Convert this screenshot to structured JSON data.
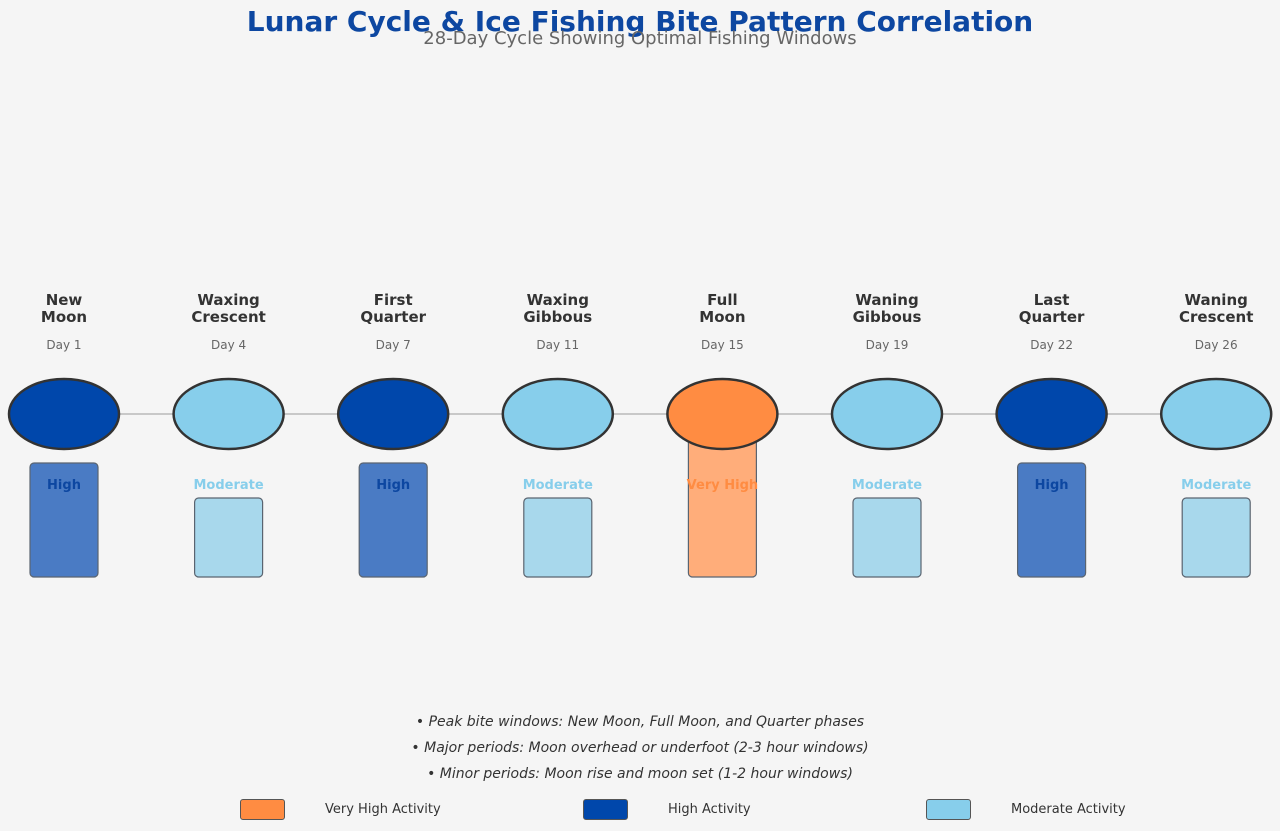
{
  "title": "Lunar Cycle & Ice Fishing Bite Pattern Correlation",
  "subtitle": "28-Day Cycle Showing Optimal Fishing Windows",
  "colors": {
    "very_high": "#ff8c42",
    "high": "#0047ab",
    "moderate": "#87ceeb",
    "very_high_bar": "#ffad7a",
    "high_bar": "#4a7bc4",
    "moderate_bar": "#a8d8ec",
    "very_high_text": "#ff8c42",
    "high_text": "#0d47a1",
    "moderate_text": "#87ceeb",
    "timeline": "#c8c8c8",
    "outline": "#333333"
  },
  "phases": [
    {
      "name_line1": "New",
      "name_line2": "Moon",
      "day": "Day 1",
      "activity": "High",
      "level": "high"
    },
    {
      "name_line1": "Waxing",
      "name_line2": "Crescent",
      "day": "Day 4",
      "activity": "Moderate",
      "level": "moderate"
    },
    {
      "name_line1": "First",
      "name_line2": "Quarter",
      "day": "Day 7",
      "activity": "High",
      "level": "high"
    },
    {
      "name_line1": "Waxing",
      "name_line2": "Gibbous",
      "day": "Day 11",
      "activity": "Moderate",
      "level": "moderate"
    },
    {
      "name_line1": "Full",
      "name_line2": "Moon",
      "day": "Day 15",
      "activity": "Very High",
      "level": "very_high"
    },
    {
      "name_line1": "Waning",
      "name_line2": "Gibbous",
      "day": "Day 19",
      "activity": "Moderate",
      "level": "moderate"
    },
    {
      "name_line1": "Last",
      "name_line2": "Quarter",
      "day": "Day 22",
      "activity": "High",
      "level": "high"
    },
    {
      "name_line1": "Waning",
      "name_line2": "Crescent",
      "day": "Day 26",
      "activity": "Moderate",
      "level": "moderate"
    }
  ],
  "notes": [
    "• Peak bite windows: New Moon, Full Moon, and Quarter phases",
    "• Major periods: Moon overhead or underfoot (2-3 hour windows)",
    "• Minor periods: Moon rise and moon set (1-2 hour windows)"
  ],
  "legend": [
    {
      "label": "Very High Activity",
      "level": "very_high"
    },
    {
      "label": "High Activity",
      "level": "high"
    },
    {
      "label": "Moderate Activity",
      "level": "moderate"
    }
  ]
}
